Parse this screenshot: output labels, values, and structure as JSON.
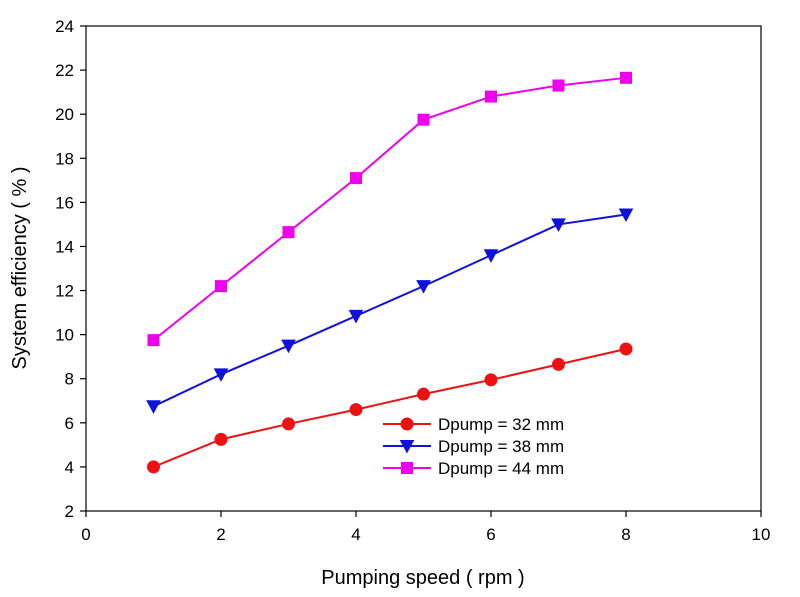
{
  "chart_data": {
    "type": "line",
    "title": "",
    "xlabel": "Pumping speed ( rpm )",
    "ylabel": "System efficiency ( % )",
    "xlim": [
      0,
      10
    ],
    "ylim": [
      2,
      24
    ],
    "xticks": [
      0,
      2,
      4,
      6,
      8,
      10
    ],
    "yticks": [
      2,
      4,
      6,
      8,
      10,
      12,
      14,
      16,
      18,
      20,
      22,
      24
    ],
    "grid": false,
    "legend_position": "center-bottom",
    "x": [
      1,
      2,
      3,
      4,
      5,
      6,
      7,
      8
    ],
    "series": [
      {
        "name": "Dpump = 32 mm",
        "color": "#ee1111",
        "marker": "circle",
        "values": [
          4.0,
          5.25,
          5.95,
          6.6,
          7.3,
          7.95,
          8.65,
          9.35
        ]
      },
      {
        "name": "Dpump = 38 mm",
        "color": "#1111dd",
        "marker": "triangle-down",
        "values": [
          6.75,
          8.2,
          9.5,
          10.85,
          12.2,
          13.6,
          15.0,
          15.45
        ]
      },
      {
        "name": "Dpump = 44 mm",
        "color": "#ee00ee",
        "marker": "square",
        "values": [
          9.75,
          12.2,
          14.65,
          17.1,
          19.75,
          20.8,
          21.3,
          21.65
        ]
      }
    ]
  }
}
